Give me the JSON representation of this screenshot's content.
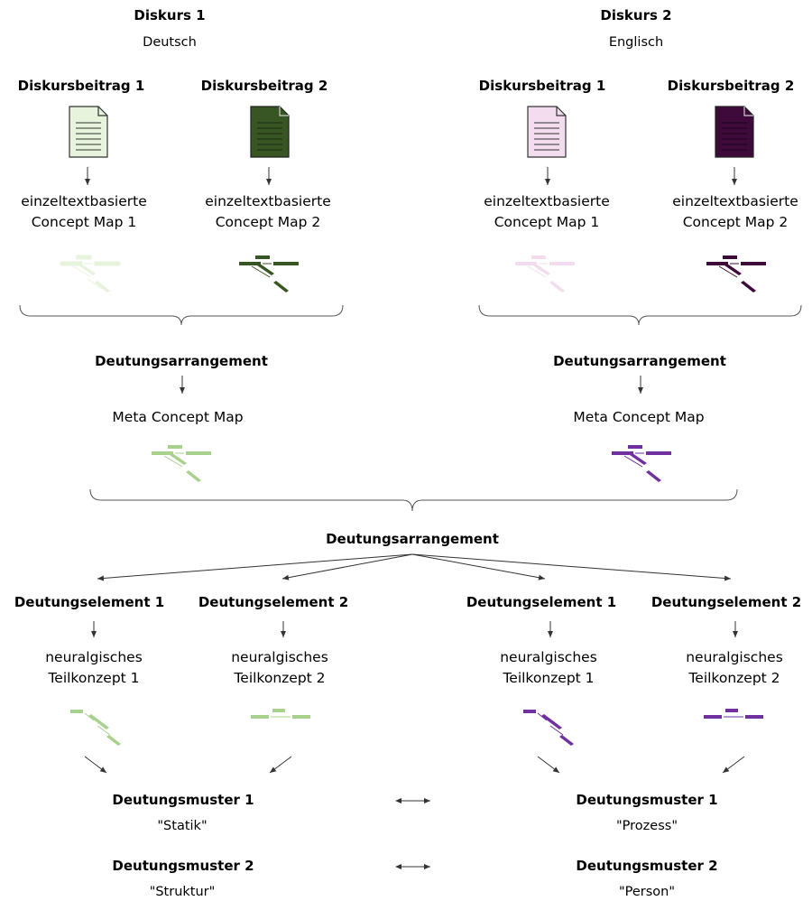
{
  "colors": {
    "light_green": "#e8f3dd",
    "dark_green": "#375623",
    "mid_green": "#a9d18e",
    "light_pink": "#f2dcee",
    "dark_purple": "#3d0a3a",
    "mid_purple": "#7030a0",
    "line": "#333333"
  },
  "discourse1": {
    "title": "Diskurs 1",
    "language": "Deutsch",
    "contribution1": {
      "label": "Diskursbeitrag 1",
      "map_line1": "einzeltextbasierte",
      "map_line2": "Concept Map 1"
    },
    "contribution2": {
      "label": "Diskursbeitrag 2",
      "map_line1": "einzeltextbasierte",
      "map_line2": "Concept Map 2"
    },
    "arrangement": "Deutungsarrangement",
    "meta_map": "Meta Concept Map"
  },
  "discourse2": {
    "title": "Diskurs 2",
    "language": "Englisch",
    "contribution1": {
      "label": "Diskursbeitrag 1",
      "map_line1": "einzeltextbasierte",
      "map_line2": "Concept Map 1"
    },
    "contribution2": {
      "label": "Diskursbeitrag 2",
      "map_line1": "einzeltextbasierte",
      "map_line2": "Concept Map 2"
    },
    "arrangement": "Deutungsarrangement",
    "meta_map": "Meta Concept Map"
  },
  "overall_arrangement": "Deutungsarrangement",
  "elements": [
    {
      "label": "Deutungselement 1",
      "line1": "neuralgisches",
      "line2": "Teilkonzept 1"
    },
    {
      "label": "Deutungselement 2",
      "line1": "neuralgisches",
      "line2": "Teilkonzept 2"
    },
    {
      "label": "Deutungselement 1",
      "line1": "neuralgisches",
      "line2": "Teilkonzept 1"
    },
    {
      "label": "Deutungselement 2",
      "line1": "neuralgisches",
      "line2": "Teilkonzept 2"
    }
  ],
  "patterns_left": [
    {
      "label": "Deutungsmuster 1",
      "value": "\"Statik\""
    },
    {
      "label": "Deutungsmuster 2",
      "value": "\"Struktur\""
    }
  ],
  "patterns_right": [
    {
      "label": "Deutungsmuster 1",
      "value": "\"Prozess\""
    },
    {
      "label": "Deutungsmuster 2",
      "value": "\"Person\""
    }
  ]
}
